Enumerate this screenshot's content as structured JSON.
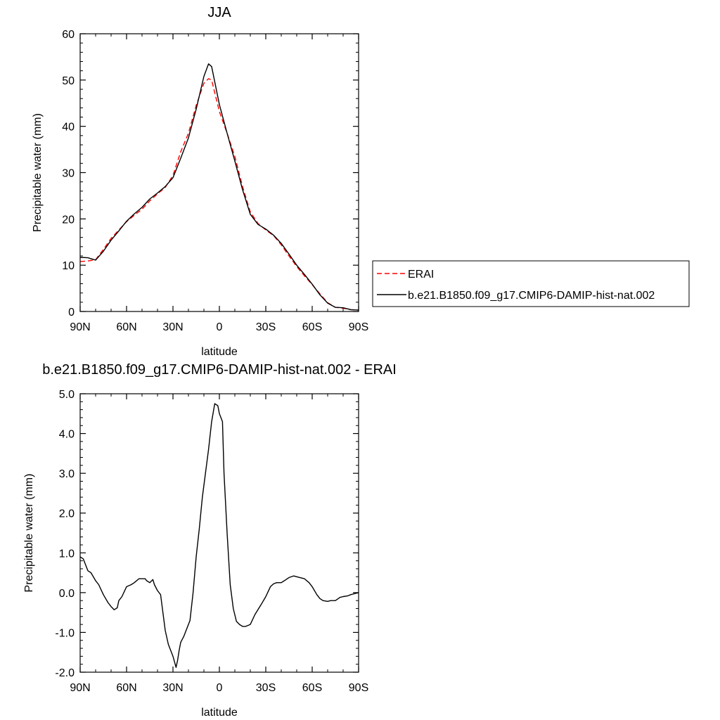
{
  "chart_data": [
    {
      "type": "line",
      "title": "JJA",
      "xlabel": "latitude",
      "ylabel": "Precipitable water (mm)",
      "xlim": [
        90,
        -90
      ],
      "ylim": [
        0,
        60
      ],
      "x_ticks": [
        90,
        60,
        30,
        0,
        -30,
        -60,
        -90
      ],
      "x_tick_labels": [
        "90N",
        "60N",
        "30N",
        "0",
        "30S",
        "60S",
        "90S"
      ],
      "y_ticks": [
        0,
        10,
        20,
        30,
        40,
        50,
        60
      ],
      "y_tick_labels": [
        "0",
        "10",
        "20",
        "30",
        "40",
        "50",
        "60"
      ],
      "grid": false,
      "legend_position": "right",
      "series": [
        {
          "name": "ERAI",
          "color": "#ff0000",
          "dash": "dashed",
          "x": [
            90,
            85,
            80,
            75,
            70,
            65,
            60,
            55,
            50,
            45,
            40,
            35,
            30,
            25,
            20,
            15,
            10,
            7,
            5,
            0,
            -5,
            -10,
            -15,
            -20,
            -25,
            -30,
            -35,
            -40,
            -45,
            -50,
            -55,
            -60,
            -65,
            -70,
            -75,
            -80,
            -85,
            -90
          ],
          "values": [
            10.8,
            10.9,
            11.2,
            13.4,
            15.8,
            17.6,
            19.4,
            20.8,
            22.1,
            23.9,
            25.4,
            26.8,
            29.4,
            34.5,
            38.5,
            44.5,
            49.3,
            50.3,
            50.0,
            43.2,
            38.5,
            33.5,
            27.0,
            21.5,
            19.0,
            17.6,
            16.4,
            14.4,
            12.0,
            9.7,
            7.7,
            5.8,
            3.8,
            1.9,
            0.9,
            0.7,
            0.4,
            0.3
          ]
        },
        {
          "name": "b.e21.B1850.f09_g17.CMIP6-DAMIP-hist-nat.002",
          "color": "#000000",
          "dash": "solid",
          "x": [
            90,
            85,
            82,
            80,
            75,
            70,
            65,
            60,
            55,
            50,
            45,
            40,
            35,
            30,
            25,
            20,
            15,
            10,
            7,
            5,
            0,
            -5,
            -10,
            -15,
            -20,
            -25,
            -30,
            -35,
            -40,
            -45,
            -50,
            -55,
            -60,
            -65,
            -70,
            -75,
            -80,
            -85,
            -90
          ],
          "values": [
            11.7,
            11.6,
            11.3,
            11.1,
            13.0,
            15.4,
            17.4,
            19.5,
            21.1,
            22.5,
            24.3,
            25.6,
            27.0,
            28.9,
            33.1,
            37.5,
            43.7,
            50.8,
            53.5,
            52.9,
            44.7,
            38.5,
            32.5,
            26.3,
            21.0,
            18.8,
            17.8,
            16.5,
            14.7,
            12.4,
            10.0,
            8.0,
            5.9,
            3.6,
            1.8,
            0.9,
            0.8,
            0.4,
            0.3
          ]
        }
      ]
    },
    {
      "type": "line",
      "title": "b.e21.B1850.f09_g17.CMIP6-DAMIP-hist-nat.002 - ERAI",
      "xlabel": "latitude",
      "ylabel": "Precipitable water (mm)",
      "xlim": [
        90,
        -90
      ],
      "ylim": [
        -2,
        5
      ],
      "x_ticks": [
        90,
        60,
        30,
        0,
        -30,
        -60,
        -90
      ],
      "x_tick_labels": [
        "90N",
        "60N",
        "30N",
        "0",
        "30S",
        "60S",
        "90S"
      ],
      "y_ticks": [
        -2,
        -1,
        0,
        1,
        2,
        3,
        4,
        5
      ],
      "y_tick_labels": [
        "-2.0",
        "-1.0",
        "0.0",
        "1.0",
        "2.0",
        "3.0",
        "4.0",
        "5.0"
      ],
      "grid": false,
      "series": [
        {
          "color": "#000000",
          "dash": "solid",
          "x": [
            90,
            88,
            85,
            83,
            80,
            78,
            75,
            72,
            70,
            68,
            66,
            65,
            63,
            60,
            57,
            55,
            52,
            50,
            48,
            47,
            45,
            43,
            42,
            40,
            38,
            35,
            33,
            31,
            30,
            28,
            27,
            26,
            25,
            23,
            21,
            19,
            17,
            15,
            13,
            11,
            9,
            7,
            5,
            3,
            1,
            0,
            -2,
            -3,
            -5,
            -7,
            -9,
            -11,
            -13,
            -15,
            -17,
            -20,
            -23,
            -27,
            -30,
            -33,
            -35,
            -37,
            -40,
            -42,
            -45,
            -48,
            -52,
            -55,
            -58,
            -60,
            -63,
            -65,
            -67,
            -70,
            -72,
            -75,
            -78,
            -80,
            -83,
            -85,
            -88,
            -90
          ],
          "values": [
            0.9,
            0.85,
            0.55,
            0.5,
            0.3,
            0.2,
            -0.05,
            -0.25,
            -0.35,
            -0.43,
            -0.38,
            -0.2,
            -0.1,
            0.15,
            0.2,
            0.25,
            0.35,
            0.35,
            0.35,
            0.3,
            0.25,
            0.33,
            0.2,
            0.05,
            -0.05,
            -0.95,
            -1.3,
            -1.5,
            -1.6,
            -1.88,
            -1.7,
            -1.45,
            -1.25,
            -1.1,
            -0.9,
            -0.7,
            0.0,
            0.9,
            1.6,
            2.4,
            3.0,
            3.6,
            4.3,
            4.75,
            4.7,
            4.5,
            4.3,
            3.0,
            1.5,
            0.2,
            -0.4,
            -0.72,
            -0.8,
            -0.85,
            -0.85,
            -0.8,
            -0.55,
            -0.3,
            -0.1,
            0.15,
            0.22,
            0.25,
            0.25,
            0.3,
            0.38,
            0.42,
            0.38,
            0.35,
            0.25,
            0.15,
            -0.05,
            -0.15,
            -0.2,
            -0.22,
            -0.2,
            -0.2,
            -0.12,
            -0.1,
            -0.08,
            -0.05,
            -0.02,
            0.0
          ]
        }
      ]
    }
  ]
}
